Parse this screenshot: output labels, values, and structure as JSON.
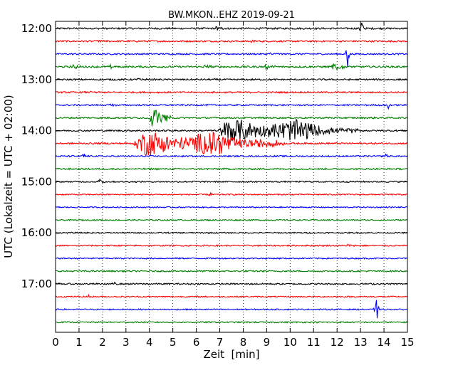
{
  "chart_data": {
    "type": "line",
    "title": "BW.MKON..EHZ 2019-09-21",
    "xlabel": "Zeit  [min]",
    "ylabel": "UTC (Lokalzeit = UTC + 02:00)",
    "xlim": [
      0,
      15
    ],
    "x_ticks": [
      0,
      1,
      2,
      3,
      4,
      5,
      6,
      7,
      8,
      9,
      10,
      11,
      12,
      13,
      14,
      15
    ],
    "y_tick_labels": [
      "12:00",
      "13:00",
      "14:00",
      "15:00",
      "16:00",
      "17:00"
    ],
    "grid": "vertical dotted",
    "trace_interval_minutes": 15,
    "series_colors": [
      "#000000",
      "#ff0000",
      "#0000ff",
      "#008000"
    ],
    "traces": [
      {
        "start": "12:00",
        "color": "#000000",
        "noise": 1.2,
        "events": [
          {
            "t": 6.8,
            "dur": 0.4,
            "amp": 4
          },
          {
            "t": 13.05,
            "dur": 0.15,
            "amp": 12,
            "spike": true
          },
          {
            "t": 1.3,
            "dur": 0.4,
            "amp": 2
          }
        ]
      },
      {
        "start": "12:15",
        "color": "#ff0000",
        "noise": 1.1,
        "events": [
          {
            "t": 1.7,
            "dur": 0.5,
            "amp": 2
          },
          {
            "t": 8.2,
            "dur": 0.5,
            "amp": 2
          }
        ]
      },
      {
        "start": "12:30",
        "color": "#0000ff",
        "noise": 1.0,
        "events": [
          {
            "t": 12.45,
            "dur": 0.1,
            "amp": 24,
            "spike": true
          },
          {
            "t": 9.0,
            "dur": 0.6,
            "amp": 2
          }
        ]
      },
      {
        "start": "12:45",
        "color": "#008000",
        "noise": 1.3,
        "events": [
          {
            "t": 0.7,
            "dur": 0.4,
            "amp": 4
          },
          {
            "t": 2.3,
            "dur": 0.4,
            "amp": 4
          },
          {
            "t": 6.3,
            "dur": 0.4,
            "amp": 4
          },
          {
            "t": 8.9,
            "dur": 0.5,
            "amp": 4
          },
          {
            "t": 11.75,
            "dur": 0.6,
            "amp": 10
          }
        ]
      },
      {
        "start": "13:00",
        "color": "#000000",
        "noise": 1.1,
        "events": [
          {
            "t": 3.4,
            "dur": 0.6,
            "amp": 2
          }
        ]
      },
      {
        "start": "13:15",
        "color": "#ff0000",
        "noise": 1.1,
        "events": [
          {
            "t": 1.4,
            "dur": 0.5,
            "amp": 2
          }
        ]
      },
      {
        "start": "13:30",
        "color": "#0000ff",
        "noise": 1.0,
        "events": [
          {
            "t": 14.2,
            "dur": 0.15,
            "amp": 6,
            "spike": true
          },
          {
            "t": 2.3,
            "dur": 0.5,
            "amp": 2
          }
        ]
      },
      {
        "start": "13:45",
        "color": "#008000",
        "noise": 1.1,
        "events": [
          {
            "t": 4.0,
            "dur": 0.9,
            "amp": 18
          }
        ]
      },
      {
        "start": "14:00",
        "color": "#000000",
        "noise": 1.1,
        "events": [
          {
            "t": 6.9,
            "dur": 6.0,
            "amp": 16,
            "quake": true
          }
        ]
      },
      {
        "start": "14:15",
        "color": "#ff0000",
        "noise": 1.1,
        "events": [
          {
            "t": 3.3,
            "dur": 6.5,
            "amp": 17,
            "quake": true
          }
        ]
      },
      {
        "start": "14:30",
        "color": "#0000ff",
        "noise": 1.0,
        "events": [
          {
            "t": 1.2,
            "dur": 0.1,
            "amp": 6,
            "spike": true
          },
          {
            "t": 14.1,
            "dur": 0.1,
            "amp": 9,
            "spike": true
          }
        ]
      },
      {
        "start": "14:45",
        "color": "#008000",
        "noise": 1.1,
        "events": []
      },
      {
        "start": "15:00",
        "color": "#000000",
        "noise": 1.0,
        "events": [
          {
            "t": 1.8,
            "dur": 0.35,
            "amp": 6
          },
          {
            "t": 5.8,
            "dur": 0.2,
            "amp": 3
          }
        ]
      },
      {
        "start": "15:15",
        "color": "#ff0000",
        "noise": 0.9,
        "events": [
          {
            "t": 6.6,
            "dur": 0.1,
            "amp": 4,
            "spike": true
          }
        ]
      },
      {
        "start": "15:30",
        "color": "#0000ff",
        "noise": 0.8,
        "events": []
      },
      {
        "start": "15:45",
        "color": "#008000",
        "noise": 0.9,
        "events": []
      },
      {
        "start": "16:00",
        "color": "#000000",
        "noise": 0.9,
        "events": []
      },
      {
        "start": "16:15",
        "color": "#ff0000",
        "noise": 1.0,
        "events": [
          {
            "t": 12.4,
            "dur": 0.4,
            "amp": 3
          }
        ]
      },
      {
        "start": "16:30",
        "color": "#0000ff",
        "noise": 0.9,
        "events": []
      },
      {
        "start": "16:45",
        "color": "#008000",
        "noise": 1.0,
        "events": []
      },
      {
        "start": "17:00",
        "color": "#000000",
        "noise": 1.0,
        "events": [
          {
            "t": 2.4,
            "dur": 0.3,
            "amp": 3
          }
        ]
      },
      {
        "start": "17:15",
        "color": "#ff0000",
        "noise": 0.9,
        "events": [
          {
            "t": 1.4,
            "dur": 0.1,
            "amp": 3,
            "spike": true
          }
        ]
      },
      {
        "start": "17:30",
        "color": "#0000ff",
        "noise": 0.9,
        "events": [
          {
            "t": 13.7,
            "dur": 0.15,
            "amp": 14,
            "spike": true
          }
        ]
      },
      {
        "start": "17:45",
        "color": "#008000",
        "noise": 0.9,
        "events": []
      }
    ]
  }
}
